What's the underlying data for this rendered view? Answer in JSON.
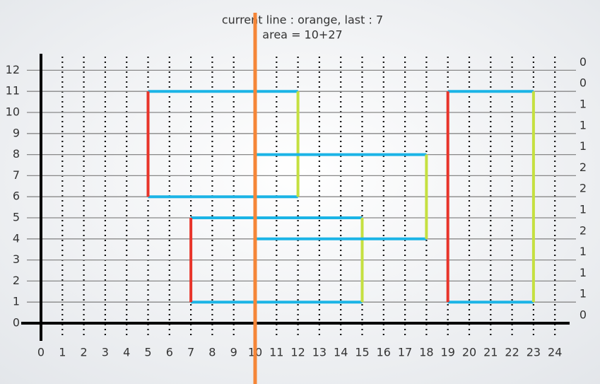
{
  "title": "current line : orange, last : 7",
  "subtitle": "area = 10+27",
  "x_labels": [
    "0",
    "1",
    "2",
    "3",
    "4",
    "5",
    "6",
    "7",
    "8",
    "9",
    "10",
    "11",
    "12",
    "13",
    "14",
    "15",
    "16",
    "17",
    "18",
    "19",
    "20",
    "21",
    "22",
    "23",
    "24"
  ],
  "y_labels": [
    "0",
    "1",
    "2",
    "3",
    "4",
    "5",
    "6",
    "7",
    "8",
    "9",
    "10",
    "11",
    "12"
  ],
  "counts": [
    "0",
    "0",
    "1",
    "1",
    "1",
    "2",
    "2",
    "1",
    "2",
    "1",
    "1",
    "1",
    "0"
  ],
  "rectangles": [
    {
      "x1": 5,
      "y1": 6,
      "x2": 12,
      "y2": 11
    },
    {
      "x1": 7,
      "y1": 1,
      "x2": 15,
      "y2": 5
    },
    {
      "x1": 10,
      "y1": 4,
      "x2": 18,
      "y2": 8
    },
    {
      "x1": 19,
      "y1": 1,
      "x2": 23,
      "y2": 11
    }
  ],
  "sweep_x": 10
}
